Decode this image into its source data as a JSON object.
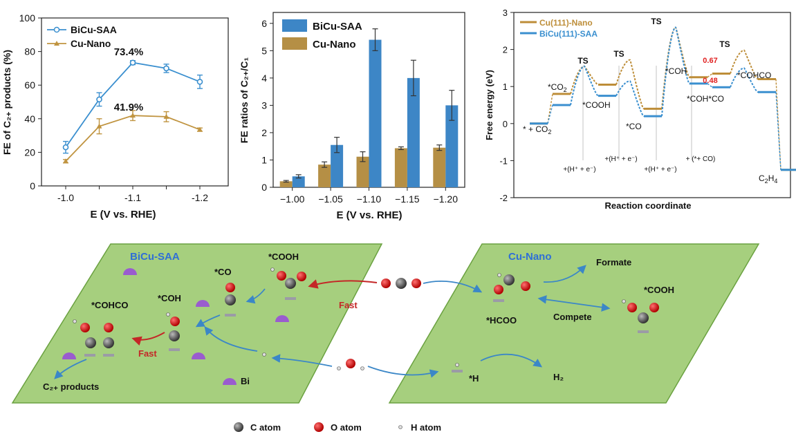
{
  "chart_data": [
    {
      "type": "line",
      "x": [
        -1.0,
        -1.05,
        -1.1,
        -1.15,
        -1.2
      ],
      "xticks": [
        "-1.0",
        "-1.1",
        "-1.2"
      ],
      "xlabel": "E (V vs. RHE)",
      "ylabel": "FE of C₂₊ products (%)",
      "ylim": [
        0,
        100
      ],
      "yticks": [
        "0",
        "20",
        "40",
        "60",
        "80",
        "100"
      ],
      "legend_position": "top-left",
      "series": [
        {
          "name": "BiCu-SAA",
          "color": "#3a8fcf",
          "marker": "circle",
          "values": [
            23.0,
            51.5,
            73.4,
            70.0,
            62.0
          ],
          "errors": [
            3.5,
            4,
            1.2,
            2.5,
            4
          ]
        },
        {
          "name": "Cu-Nano",
          "color": "#c09440",
          "marker": "triangle",
          "values": [
            14.7,
            35.5,
            41.9,
            41.2,
            33.5
          ],
          "errors": [
            1,
            4.5,
            3,
            3,
            1
          ]
        }
      ],
      "annotations": [
        "73.4%",
        "41.9%"
      ]
    },
    {
      "type": "bar",
      "categories": [
        "−1.00",
        "−1.05",
        "−1.10",
        "−1.15",
        "−1.20"
      ],
      "xlabel": "E (V vs. RHE)",
      "ylabel": "FE ratios of C₂₊/C₁",
      "ylim": [
        0,
        6.4
      ],
      "yticks": [
        "0",
        "1",
        "2",
        "3",
        "4",
        "5",
        "6"
      ],
      "legend_position": "top-left",
      "series": [
        {
          "name": "BiCu-SAA",
          "color": "#3d86c6",
          "values": [
            0.4,
            1.55,
            5.4,
            4.0,
            3.0
          ],
          "errors": [
            0.06,
            0.28,
            0.4,
            0.65,
            0.55
          ]
        },
        {
          "name": "Cu-Nano",
          "color": "#b58f45",
          "values": [
            0.22,
            0.83,
            1.12,
            1.43,
            1.45
          ],
          "errors": [
            0.03,
            0.1,
            0.18,
            0.05,
            0.1
          ]
        }
      ]
    },
    {
      "type": "line",
      "xlabel": "Reaction coordinate",
      "ylabel": "Free energy (eV)",
      "ylim": [
        -2,
        3
      ],
      "yticks": [
        "-2",
        "-1",
        "0",
        "1",
        "2",
        "3"
      ],
      "legend_position": "top-left",
      "series": [
        {
          "name": "Cu(111)-Nano",
          "color": "#bd8d38",
          "levels": [
            0.0,
            0.8,
            1.55,
            1.05,
            1.72,
            0.4,
            2.6,
            1.25,
            1.35,
            1.98,
            1.2,
            -1.25
          ]
        },
        {
          "name": "BiCu(111)-SAA",
          "color": "#3a8fcf",
          "levels": [
            0.0,
            0.5,
            1.55,
            0.75,
            1.15,
            0.2,
            2.6,
            1.08,
            0.98,
            1.5,
            0.85,
            -1.25
          ]
        }
      ],
      "species_labels": [
        "* + CO2",
        "*CO2",
        "TS",
        "*COOH",
        "TS",
        "*CO",
        "TS",
        "*COH",
        "*COH*CO",
        "TS",
        "*COHCO",
        "C2H4"
      ],
      "step_labels": [
        "+(H⁺ + e⁻)",
        "+(H⁺ + e⁻)",
        "+(H⁺ + e⁻)",
        "+ (*+ CO)"
      ],
      "barrier_values": [
        "0.67",
        "0.48"
      ]
    }
  ],
  "schematic": {
    "left_title": "BiCu-SAA",
    "left_labels": {
      "cooh": "*COOH",
      "co": "*CO",
      "coh": "*COH",
      "cohco": "*COHCO",
      "fast1": "Fast",
      "fast2": "Fast",
      "products": "C₂₊ products",
      "bi": "Bi"
    },
    "right_title": "Cu-Nano",
    "right_labels": {
      "formate": "Formate",
      "hcoo": "*HCOO",
      "cooh": "*COOH",
      "compete": "Compete",
      "h": "*H",
      "h2": "H₂"
    },
    "legend": {
      "c": "C atom",
      "o": "O atom",
      "h": "H atom"
    },
    "colors": {
      "plane": "#a6cf7e",
      "plane_edge": "#6aa140",
      "carbon": "#555555",
      "oxygen": "#dd1111",
      "bismuth": "#9a5ccf",
      "arrow_blue": "#3b87c7",
      "arrow_red": "#c42727"
    }
  }
}
